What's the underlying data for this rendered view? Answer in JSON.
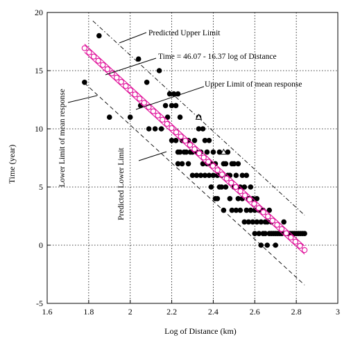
{
  "chart_data": {
    "type": "scatter",
    "xlabel": "Log of Distance (km)",
    "ylabel": "Time (year)",
    "xlim": [
      1.6,
      3.0
    ],
    "ylim": [
      -5,
      20
    ],
    "xticks": [
      "1.6",
      "1.8",
      "2",
      "2.2",
      "2.4",
      "2.6",
      "2.8",
      "3"
    ],
    "yticks": [
      "-5",
      "0",
      "5",
      "10",
      "15",
      "20"
    ],
    "grid": true,
    "regression": {
      "intercept": 46.07,
      "slope": -16.37,
      "x_range": [
        1.78,
        2.84
      ]
    },
    "band_offsets": {
      "mean_response": 0.35,
      "prediction": 3.0
    },
    "annotations": {
      "predicted_upper": "Predicted Upper Limit",
      "equation": "Time = 46.07 - 16.37 log of Distance",
      "upper_mean": "Upper Limit of mean response",
      "lower_mean": "Lower Limit of mean response",
      "predicted_lower": "Predicted Lower Limit"
    },
    "colors": {
      "fit": "#e0109a",
      "points": "#000000"
    },
    "observed": [
      [
        1.78,
        14
      ],
      [
        1.85,
        18
      ],
      [
        1.9,
        11
      ],
      [
        2.0,
        11
      ],
      [
        2.04,
        16
      ],
      [
        2.05,
        12
      ],
      [
        2.08,
        14
      ],
      [
        2.09,
        10
      ],
      [
        2.12,
        10
      ],
      [
        2.14,
        15
      ],
      [
        2.15,
        10
      ],
      [
        2.17,
        12
      ],
      [
        2.18,
        11
      ],
      [
        2.19,
        13
      ],
      [
        2.2,
        12
      ],
      [
        2.2,
        9
      ],
      [
        2.21,
        13
      ],
      [
        2.22,
        12
      ],
      [
        2.22,
        9
      ],
      [
        2.23,
        8
      ],
      [
        2.23,
        7
      ],
      [
        2.23,
        13
      ],
      [
        2.24,
        8
      ],
      [
        2.24,
        11
      ],
      [
        2.25,
        9
      ],
      [
        2.25,
        7
      ],
      [
        2.26,
        8
      ],
      [
        2.27,
        8
      ],
      [
        2.28,
        9
      ],
      [
        2.28,
        7
      ],
      [
        2.29,
        8
      ],
      [
        2.3,
        6
      ],
      [
        2.3,
        8
      ],
      [
        2.31,
        9
      ],
      [
        2.32,
        6
      ],
      [
        2.32,
        8
      ],
      [
        2.33,
        10
      ],
      [
        2.33,
        11
      ],
      [
        2.34,
        6
      ],
      [
        2.34,
        8
      ],
      [
        2.35,
        10
      ],
      [
        2.35,
        7
      ],
      [
        2.36,
        6
      ],
      [
        2.36,
        9
      ],
      [
        2.37,
        7
      ],
      [
        2.37,
        8
      ],
      [
        2.38,
        6
      ],
      [
        2.38,
        9
      ],
      [
        2.39,
        7
      ],
      [
        2.39,
        5
      ],
      [
        2.4,
        6
      ],
      [
        2.4,
        8
      ],
      [
        2.41,
        4
      ],
      [
        2.41,
        7
      ],
      [
        2.42,
        4
      ],
      [
        2.42,
        6
      ],
      [
        2.43,
        5
      ],
      [
        2.43,
        8
      ],
      [
        2.44,
        5
      ],
      [
        2.44,
        6
      ],
      [
        2.45,
        7
      ],
      [
        2.45,
        3
      ],
      [
        2.46,
        5
      ],
      [
        2.46,
        7
      ],
      [
        2.47,
        6
      ],
      [
        2.47,
        8
      ],
      [
        2.48,
        4
      ],
      [
        2.48,
        6
      ],
      [
        2.49,
        7
      ],
      [
        2.49,
        3
      ],
      [
        2.5,
        5
      ],
      [
        2.5,
        7
      ],
      [
        2.51,
        3
      ],
      [
        2.51,
        6
      ],
      [
        2.52,
        4
      ],
      [
        2.52,
        7
      ],
      [
        2.53,
        3
      ],
      [
        2.53,
        5
      ],
      [
        2.54,
        6
      ],
      [
        2.54,
        4
      ],
      [
        2.55,
        2
      ],
      [
        2.55,
        5
      ],
      [
        2.56,
        3
      ],
      [
        2.56,
        6
      ],
      [
        2.57,
        2
      ],
      [
        2.57,
        4
      ],
      [
        2.58,
        5
      ],
      [
        2.58,
        3
      ],
      [
        2.59,
        2
      ],
      [
        2.59,
        4
      ],
      [
        2.6,
        3
      ],
      [
        2.6,
        1
      ],
      [
        2.61,
        2
      ],
      [
        2.61,
        4
      ],
      [
        2.62,
        1
      ],
      [
        2.62,
        3
      ],
      [
        2.63,
        2
      ],
      [
        2.63,
        0
      ],
      [
        2.64,
        1
      ],
      [
        2.64,
        3
      ],
      [
        2.65,
        2
      ],
      [
        2.65,
        1
      ],
      [
        2.66,
        2
      ],
      [
        2.66,
        0
      ],
      [
        2.67,
        1
      ],
      [
        2.67,
        3
      ],
      [
        2.68,
        1
      ],
      [
        2.68,
        2
      ],
      [
        2.69,
        1
      ],
      [
        2.7,
        0
      ],
      [
        2.7,
        1
      ],
      [
        2.71,
        1
      ],
      [
        2.72,
        1
      ],
      [
        2.73,
        1
      ],
      [
        2.74,
        2
      ],
      [
        2.75,
        1
      ],
      [
        2.76,
        1
      ],
      [
        2.77,
        1
      ],
      [
        2.78,
        1
      ],
      [
        2.79,
        1
      ],
      [
        2.8,
        1
      ],
      [
        2.81,
        1
      ],
      [
        2.82,
        1
      ],
      [
        2.83,
        1
      ],
      [
        2.84,
        1
      ]
    ],
    "open_triangles": [
      [
        2.33,
        11
      ],
      [
        2.45,
        8
      ]
    ]
  }
}
